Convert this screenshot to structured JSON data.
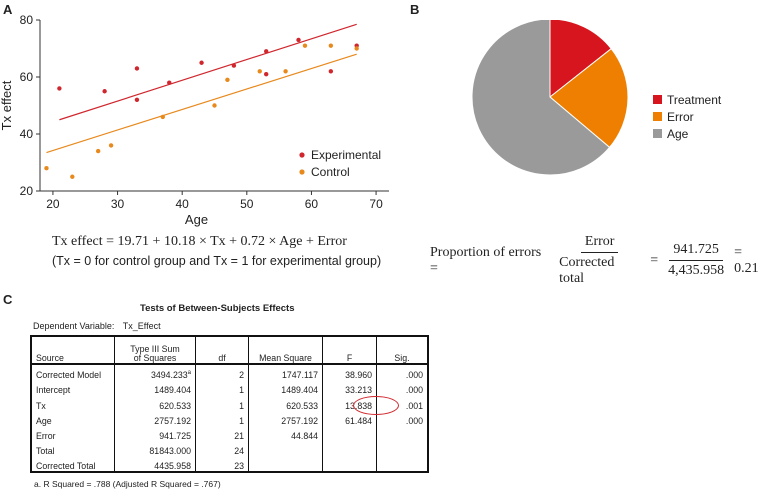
{
  "panels": {
    "a": "A",
    "b": "B",
    "c": "C"
  },
  "colors": {
    "experimental": "#d0262d",
    "control": "#e8891d",
    "treatment": "#d7151f",
    "error": "#ee7f00",
    "age": "#9a9a9a"
  },
  "chart_data": [
    {
      "type": "scatter",
      "xlabel": "Age",
      "ylabel": "Tx effect",
      "xlim": [
        18,
        72
      ],
      "ylim": [
        20,
        80
      ],
      "xticks": [
        20,
        30,
        40,
        50,
        60,
        70
      ],
      "yticks": [
        20,
        40,
        60,
        80
      ],
      "legend_position": "bottom-right",
      "series": [
        {
          "name": "Experimental",
          "color": "#d0262d",
          "points": [
            [
              21,
              56
            ],
            [
              28,
              55
            ],
            [
              33,
              52
            ],
            [
              33,
              63
            ],
            [
              38,
              58
            ],
            [
              43,
              65
            ],
            [
              48,
              64
            ],
            [
              53,
              61
            ],
            [
              53,
              69
            ],
            [
              58,
              73
            ],
            [
              63,
              62
            ],
            [
              67,
              71
            ]
          ],
          "fit_line": [
            [
              21,
              45
            ],
            [
              67,
              78.5
            ]
          ]
        },
        {
          "name": "Control",
          "color": "#e8891d",
          "points": [
            [
              19,
              28
            ],
            [
              23,
              25
            ],
            [
              27,
              34
            ],
            [
              29,
              36
            ],
            [
              37,
              46
            ],
            [
              45,
              50
            ],
            [
              47,
              59
            ],
            [
              52,
              62
            ],
            [
              56,
              62
            ],
            [
              59,
              71
            ],
            [
              63,
              71
            ],
            [
              67,
              70
            ]
          ],
          "fit_line": [
            [
              19,
              33.5
            ],
            [
              67,
              68
            ]
          ]
        }
      ]
    },
    {
      "type": "pie",
      "labels": [
        "Treatment",
        "Error",
        "Age"
      ],
      "values": [
        620.533,
        941.725,
        2757.192
      ],
      "colors": [
        "#d7151f",
        "#ee7f00",
        "#9a9a9a"
      ],
      "legend_position": "right"
    }
  ],
  "equation": {
    "main": "Tx effect = 19.71 + 10.18 × Tx + 0.72 × Age + Error",
    "note": "(Tx = 0 for control group and Tx = 1 for experimental group)"
  },
  "proportion": {
    "label": "Proportion of errors =",
    "num1": "Error",
    "den1": "Corrected total",
    "eq1": "=",
    "num2": "941.725",
    "den2": "4,435.958",
    "eq2": "= 0.21"
  },
  "table": {
    "title": "Tests of Between-Subjects Effects",
    "dep_label": "Dependent Variable:",
    "dep_value": "Tx_Effect",
    "headers": {
      "source": "Source",
      "ss1": "Type III Sum",
      "ss2": "of Squares",
      "df": "df",
      "ms": "Mean Square",
      "f": "F",
      "sig": "Sig."
    },
    "rows": [
      {
        "source": "Corrected Model",
        "ss": "3494.233",
        "sup": "a",
        "df": "2",
        "ms": "1747.117",
        "f": "38.960",
        "sig": ".000"
      },
      {
        "source": "Intercept",
        "ss": "1489.404",
        "sup": "",
        "df": "1",
        "ms": "1489.404",
        "f": "33.213",
        "sig": ".000"
      },
      {
        "source": "Tx",
        "ss": "620.533",
        "sup": "",
        "df": "1",
        "ms": "620.533",
        "f": "13.838",
        "sig": ".001"
      },
      {
        "source": "Age",
        "ss": "2757.192",
        "sup": "",
        "df": "1",
        "ms": "2757.192",
        "f": "61.484",
        "sig": ".000"
      },
      {
        "source": "Error",
        "ss": "941.725",
        "sup": "",
        "df": "21",
        "ms": "44.844",
        "f": "",
        "sig": ""
      },
      {
        "source": "Total",
        "ss": "81843.000",
        "sup": "",
        "df": "24",
        "ms": "",
        "f": "",
        "sig": ""
      },
      {
        "source": "Corrected Total",
        "ss": "4435.958",
        "sup": "",
        "df": "23",
        "ms": "",
        "f": "",
        "sig": ""
      }
    ],
    "footnote": "a. R Squared = .788 (Adjusted R Squared = .767)"
  }
}
